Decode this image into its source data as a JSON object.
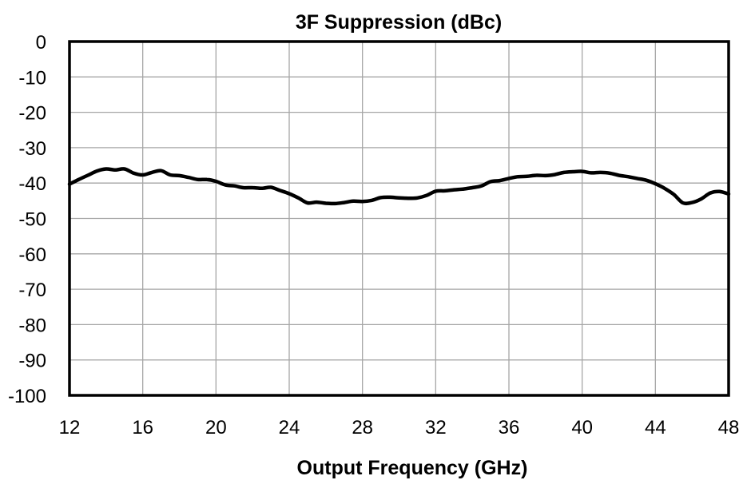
{
  "chart_data": {
    "type": "line",
    "title": "3F Suppression (dBc)",
    "xlabel": "Output Frequency  (GHz)",
    "ylabel": "",
    "xlim": [
      12,
      48
    ],
    "ylim": [
      -100,
      0
    ],
    "x_ticks": [
      12,
      16,
      20,
      24,
      28,
      32,
      36,
      40,
      44,
      48
    ],
    "y_ticks": [
      0,
      -10,
      -20,
      -30,
      -40,
      -50,
      -60,
      -70,
      -80,
      -90,
      -100
    ],
    "grid": true,
    "legend": "none",
    "series": [
      {
        "color": "#000000",
        "x": [
          12,
          12.5,
          13,
          13.5,
          14,
          14.5,
          15,
          15.5,
          16,
          16.5,
          17,
          17.5,
          18,
          18.5,
          19,
          19.5,
          20,
          20.5,
          21,
          21.5,
          22,
          22.5,
          23,
          23.5,
          24,
          24.5,
          25,
          25.5,
          26,
          26.5,
          27,
          27.5,
          28,
          28.5,
          29,
          29.5,
          30,
          30.5,
          31,
          31.5,
          32,
          32.5,
          33,
          33.5,
          34,
          34.5,
          35,
          35.5,
          36,
          36.5,
          37,
          37.5,
          38,
          38.5,
          39,
          39.5,
          40,
          40.5,
          41,
          41.5,
          42,
          42.5,
          43,
          43.5,
          44,
          44.5,
          45,
          45.5,
          46,
          46.5,
          47,
          47.5,
          48
        ],
        "values": [
          -40.3,
          -39,
          -37.8,
          -36.6,
          -36,
          -36.3,
          -36,
          -37.2,
          -37.7,
          -37,
          -36.5,
          -37.7,
          -37.9,
          -38.4,
          -39,
          -39,
          -39.5,
          -40.5,
          -40.8,
          -41.3,
          -41.3,
          -41.5,
          -41.2,
          -42.1,
          -43,
          -44.2,
          -45.6,
          -45.4,
          -45.7,
          -45.8,
          -45.5,
          -45.1,
          -45.2,
          -44.9,
          -44.1,
          -44,
          -44.2,
          -44.3,
          -44.2,
          -43.5,
          -42.3,
          -42.2,
          -41.9,
          -41.7,
          -41.3,
          -40.8,
          -39.6,
          -39.3,
          -38.7,
          -38.2,
          -38.1,
          -37.8,
          -37.9,
          -37.6,
          -37,
          -36.8,
          -36.7,
          -37.1,
          -37,
          -37.2,
          -37.8,
          -38.2,
          -38.7,
          -39.2,
          -40.2,
          -41.5,
          -43.2,
          -45.6,
          -45.5,
          -44.5,
          -42.8,
          -42.4,
          -43.1
        ]
      }
    ]
  }
}
